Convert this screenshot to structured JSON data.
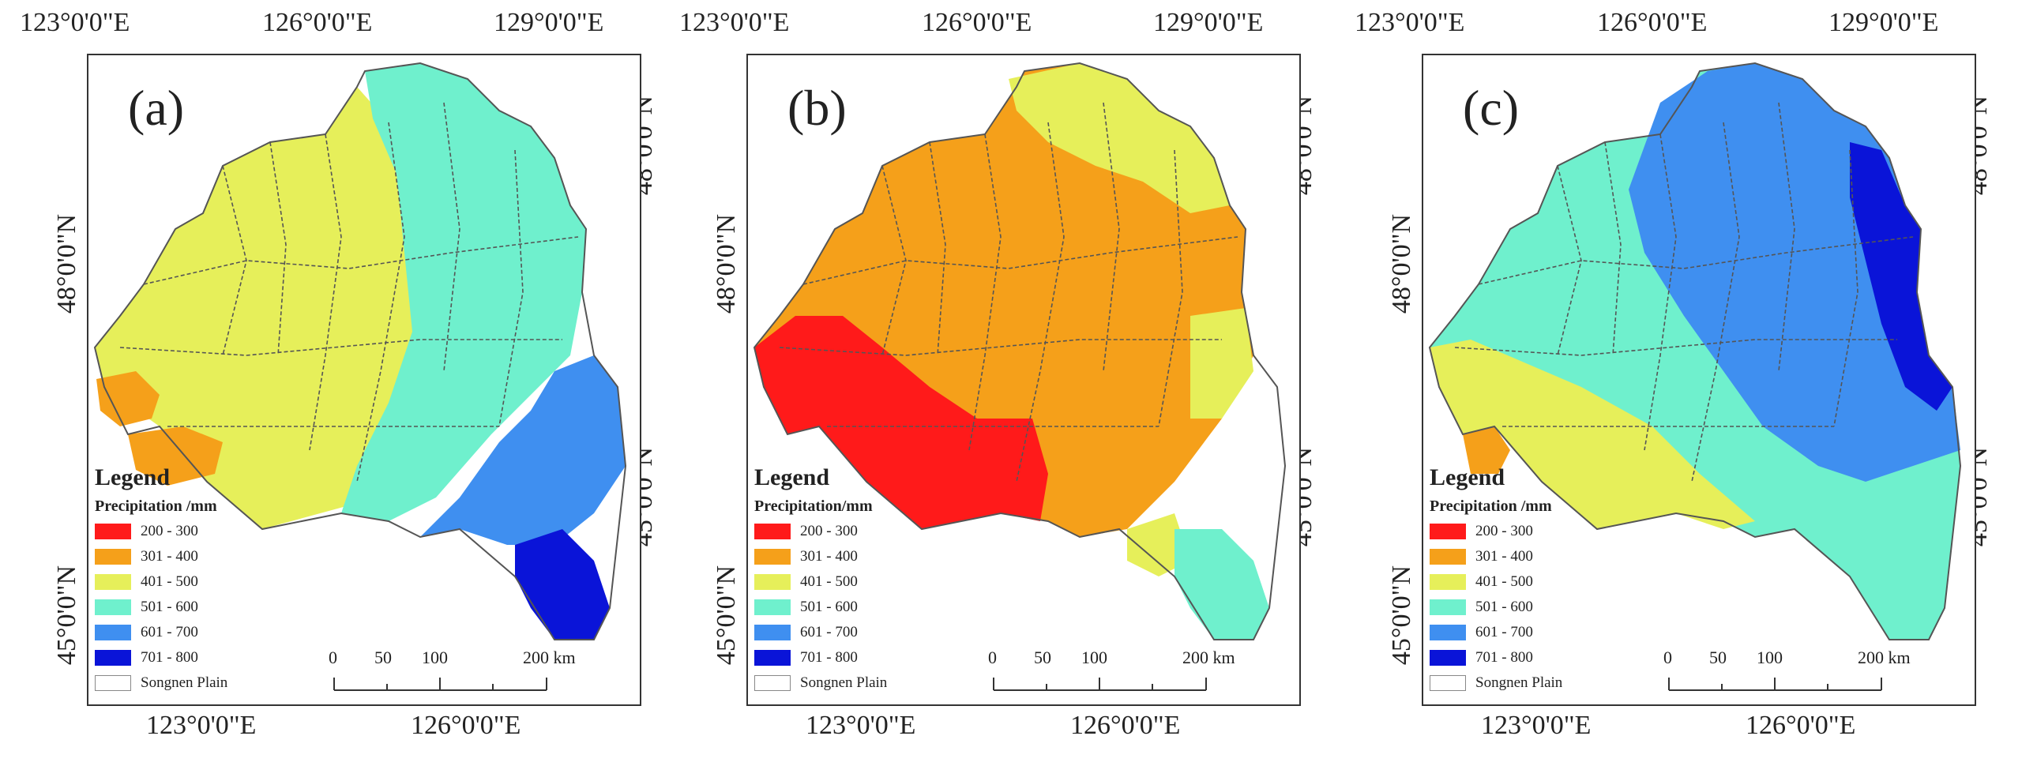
{
  "legend": {
    "title": "Legend",
    "subtitle": "Precipitation /mm",
    "classes": [
      {
        "label": "200 - 300",
        "color": "#ff1a1a"
      },
      {
        "label": "301 - 400",
        "color": "#f5a01a"
      },
      {
        "label": "401 - 500",
        "color": "#e6ef5a"
      },
      {
        "label": "501 - 600",
        "color": "#6ff0cd"
      },
      {
        "label": "601 - 700",
        "color": "#3f8ff0"
      },
      {
        "label": "701 - 800",
        "color": "#0a14d8"
      }
    ],
    "boundary_label": "Songnen Plain"
  },
  "coords": {
    "top_ticks": [
      "123°0'0\"E",
      "126°0'0\"E",
      "129°0'0\"E"
    ],
    "bottom_ticks": [
      "123°0'0\"E",
      "126°0'0\"E"
    ],
    "left_ticks": [
      "48°0'0\"N",
      "45°0'0\"N"
    ],
    "right_ticks": [
      "48°0'0\"N",
      "45°0'0\"N"
    ]
  },
  "scale_bar": {
    "labels": [
      "0",
      "50",
      "100",
      "200 km"
    ]
  },
  "panels": [
    {
      "label": "(a)",
      "legend_subtitle": "Precipitation /mm",
      "dominant_classes": [
        "401 - 500",
        "501 - 600",
        "601 - 700",
        "301 - 400",
        "701 - 800"
      ]
    },
    {
      "label": "(b)",
      "legend_subtitle": "Precipitation/mm",
      "dominant_classes": [
        "301 - 400",
        "200 - 300",
        "401 - 500",
        "501 - 600"
      ]
    },
    {
      "label": "(c)",
      "legend_subtitle": "Precipitation /mm",
      "dominant_classes": [
        "601 - 700",
        "501 - 600",
        "401 - 500",
        "701 - 800",
        "301 - 400"
      ]
    }
  ]
}
